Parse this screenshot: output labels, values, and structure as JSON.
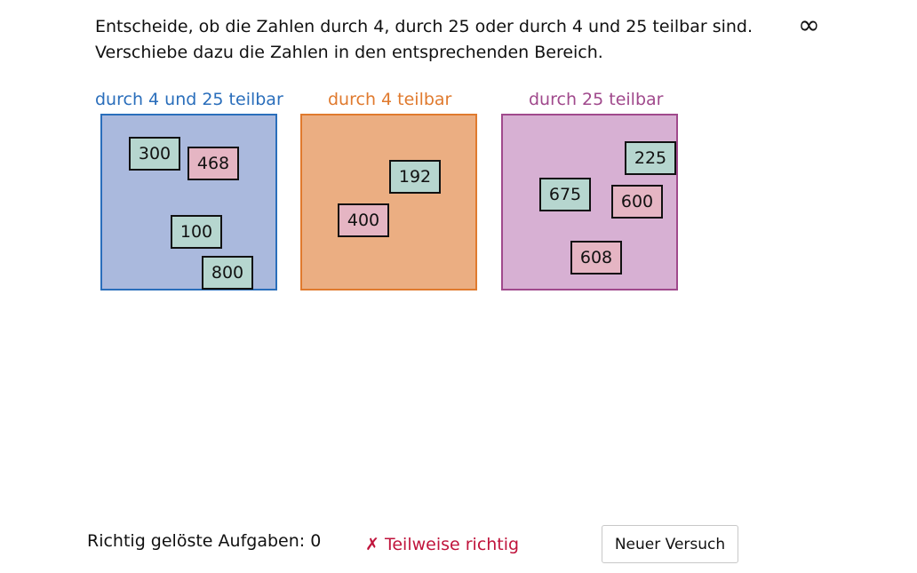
{
  "instructions": {
    "line1": "Entscheide, ob die Zahlen durch 4, durch 25 oder durch 4 und 25 teilbar sind.",
    "line2": "Verschiebe dazu die Zahlen in den entsprechenden Bereich.",
    "infinity_symbol": "∞"
  },
  "zones": [
    {
      "label": "durch 4 und 25 teilbar",
      "color": "#2a6ebb",
      "fill": "#aab9dd"
    },
    {
      "label": "durch 4 teilbar",
      "color": "#e07a2e",
      "fill": "#ebae82"
    },
    {
      "label": "durch 25 teilbar",
      "color": "#a0498c",
      "fill": "#d7b0d3"
    }
  ],
  "tiles": {
    "t300": "300",
    "t468": "468",
    "t100": "100",
    "t800": "800",
    "t192": "192",
    "t400": "400",
    "t225": "225",
    "t675": "675",
    "t600": "600",
    "t608": "608"
  },
  "footer": {
    "score_label": "Richtig gelöste Aufgaben: 0",
    "status_mark": "✗",
    "status_text": "Teilweise richtig",
    "status_color": "#c0143c",
    "retry_button": "Neuer Versuch"
  }
}
